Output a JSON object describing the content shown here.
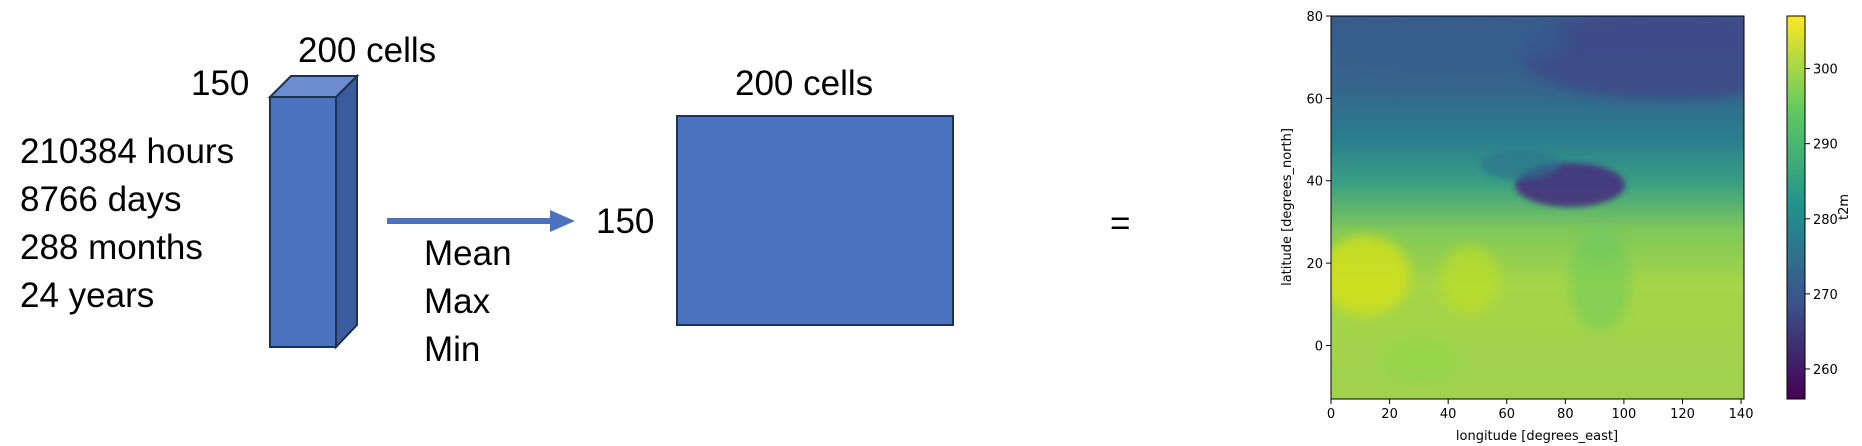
{
  "cube": {
    "depth_label": "150",
    "width_label": "200 cells",
    "time_steps": [
      "210384 hours",
      "8766 days",
      "288 months",
      "24 years"
    ]
  },
  "operations": [
    "Mean",
    "Max",
    "Min"
  ],
  "result_grid": {
    "height_label": "150",
    "width_label": "200 cells"
  },
  "equals": "=",
  "colors": {
    "box_front": "#4a72be",
    "box_top": "#6b8cd0",
    "box_side": "#3a5c9f",
    "outline": "#1f3150",
    "arrow": "#4a72be"
  },
  "chart_data": {
    "type": "heatmap",
    "variable": "t2m",
    "xlabel": "longitude [degrees_east]",
    "ylabel": "latitude [degrees_north]",
    "xlim": [
      0,
      141
    ],
    "ylim": [
      -13,
      80
    ],
    "x_ticks": [
      0,
      20,
      40,
      60,
      80,
      100,
      120,
      140
    ],
    "y_ticks": [
      0,
      20,
      40,
      60,
      80
    ],
    "colorbar": {
      "label": "t2m",
      "range": [
        256,
        307
      ],
      "ticks": [
        260,
        270,
        280,
        290,
        300
      ],
      "colormap": "viridis"
    }
  }
}
